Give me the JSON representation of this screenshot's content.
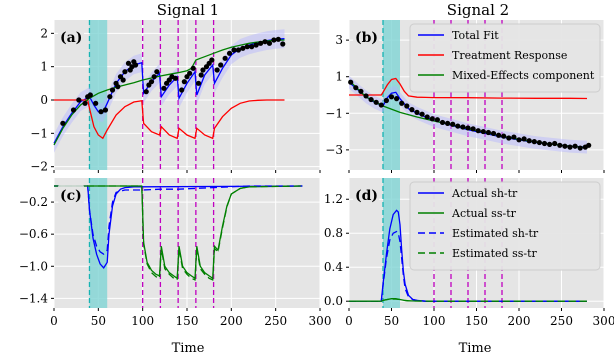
{
  "chart_data": [
    {
      "type": "line",
      "panel_label": "(a)",
      "title": "Signal 1",
      "xlim": [
        0,
        300
      ],
      "ylim": [
        -2.1,
        2.4
      ],
      "yticks": [
        2,
        1,
        0,
        -1,
        -2
      ],
      "ytick_labels": [
        "2",
        "1",
        "0",
        "−1",
        "−2"
      ],
      "xlabel": "",
      "grid": true,
      "shaded_span": [
        40,
        60
      ],
      "vlines_cyan": [
        40
      ],
      "vlines_magenta": [
        100,
        120,
        140,
        160,
        180
      ],
      "series": [
        {
          "name": "Total Fit",
          "color": "#0000ff",
          "x": [
            0,
            10,
            20,
            30,
            40,
            45,
            50,
            55,
            60,
            70,
            80,
            90,
            99,
            101,
            110,
            119,
            121,
            130,
            139,
            141,
            150,
            159,
            161,
            170,
            179,
            181,
            190,
            200,
            210,
            220,
            230,
            240,
            250,
            260
          ],
          "y": [
            -1.3,
            -0.8,
            -0.4,
            -0.05,
            0.1,
            -0.15,
            -0.35,
            -0.38,
            -0.1,
            0.5,
            0.85,
            1.05,
            1.12,
            0.2,
            0.55,
            0.8,
            0.1,
            0.45,
            0.7,
            0.05,
            0.5,
            0.85,
            0.15,
            0.75,
            1.05,
            0.5,
            0.95,
            1.35,
            1.55,
            1.65,
            1.72,
            1.78,
            1.82,
            1.84
          ]
        },
        {
          "name": "Treatment Response",
          "color": "#ff0000",
          "x": [
            0,
            38,
            40,
            45,
            50,
            55,
            60,
            70,
            80,
            90,
            99,
            101,
            110,
            119,
            121,
            130,
            139,
            141,
            150,
            159,
            161,
            170,
            179,
            181,
            190,
            200,
            210,
            220,
            230,
            240,
            250,
            260
          ],
          "y": [
            0,
            0,
            -0.25,
            -0.8,
            -1.05,
            -1.15,
            -0.9,
            -0.45,
            -0.2,
            -0.06,
            -0.02,
            -0.7,
            -0.95,
            -1.05,
            -0.8,
            -1.05,
            -1.15,
            -0.85,
            -1.05,
            -1.15,
            -0.85,
            -1.05,
            -1.15,
            -0.85,
            -0.5,
            -0.25,
            -0.1,
            -0.03,
            -0.01,
            0,
            0,
            0
          ]
        },
        {
          "name": "Mixed-Effects component",
          "color": "#008000",
          "x": [
            0,
            10,
            20,
            30,
            40,
            50,
            60,
            70,
            80,
            90,
            100,
            110,
            120,
            130,
            140,
            150,
            155,
            160,
            165,
            170,
            180,
            190,
            200,
            210,
            220,
            230,
            240,
            250,
            260
          ],
          "y": [
            -1.35,
            -0.85,
            -0.45,
            -0.15,
            0.05,
            0.2,
            0.3,
            0.38,
            0.45,
            0.52,
            0.6,
            0.66,
            0.72,
            0.77,
            0.82,
            0.88,
            0.95,
            1.2,
            1.25,
            1.3,
            1.4,
            1.5,
            1.58,
            1.64,
            1.7,
            1.74,
            1.77,
            1.79,
            1.8
          ]
        }
      ],
      "observations": {
        "x": [
          10,
          22,
          28,
          35,
          38,
          41,
          47,
          53,
          58,
          63,
          66,
          70,
          72,
          75,
          78,
          80,
          84,
          86,
          88,
          90,
          92,
          104,
          107,
          110,
          113,
          116,
          124,
          127,
          130,
          133,
          137,
          144,
          147,
          150,
          153,
          157,
          163,
          166,
          168,
          172,
          175,
          178,
          184,
          188,
          193,
          198,
          203,
          208,
          213,
          218,
          223,
          228,
          233,
          238,
          243,
          248,
          253,
          258
        ],
        "y": [
          -0.7,
          -0.3,
          0.0,
          -0.1,
          0.1,
          0.15,
          -0.1,
          -0.35,
          -0.3,
          0.1,
          0.3,
          0.5,
          0.4,
          0.7,
          0.6,
          0.85,
          1.1,
          0.9,
          1.0,
          1.15,
          1.05,
          0.25,
          0.45,
          0.55,
          0.7,
          0.85,
          0.35,
          0.5,
          0.6,
          0.7,
          0.65,
          0.3,
          0.55,
          0.7,
          0.8,
          0.95,
          0.5,
          0.75,
          0.9,
          1.0,
          1.1,
          1.2,
          0.9,
          1.05,
          1.25,
          1.4,
          1.5,
          1.5,
          1.55,
          1.6,
          1.6,
          1.65,
          1.7,
          1.75,
          1.7,
          1.8,
          1.82,
          1.68
        ]
      }
    },
    {
      "type": "line",
      "panel_label": "(b)",
      "title": "Signal 2",
      "xlim": [
        0,
        300
      ],
      "ylim": [
        -4.1,
        4.1
      ],
      "yticks": [
        3,
        1,
        -1,
        -3
      ],
      "ytick_labels": [
        "3",
        "1",
        "−1",
        "−3"
      ],
      "grid": true,
      "legend_position": "top-right",
      "shaded_span": [
        40,
        60
      ],
      "vlines_cyan": [
        40
      ],
      "vlines_magenta": [
        100,
        120,
        140,
        160,
        180
      ],
      "series": [
        {
          "name": "Total Fit",
          "color": "#0000ff",
          "x": [
            0,
            10,
            20,
            30,
            40,
            45,
            50,
            55,
            60,
            70,
            80,
            90,
            100,
            120,
            140,
            160,
            180,
            200,
            220,
            240,
            260,
            280
          ],
          "y": [
            0.7,
            0.3,
            -0.1,
            -0.4,
            -0.6,
            -0.15,
            0.1,
            0.15,
            -0.2,
            -0.75,
            -1.0,
            -1.2,
            -1.4,
            -1.65,
            -1.9,
            -2.1,
            -2.3,
            -2.45,
            -2.6,
            -2.7,
            -2.8,
            -2.85
          ]
        },
        {
          "name": "Treatment Response",
          "color": "#ff0000",
          "x": [
            0,
            38,
            40,
            45,
            50,
            55,
            60,
            65,
            70,
            80,
            90,
            100,
            140,
            180,
            220,
            260,
            280
          ],
          "y": [
            0,
            0,
            0.15,
            0.55,
            0.85,
            0.9,
            0.6,
            0.2,
            -0.05,
            -0.12,
            -0.13,
            -0.14,
            -0.15,
            -0.17,
            -0.18,
            -0.18,
            -0.19
          ]
        },
        {
          "name": "Mixed-Effects component",
          "color": "#008000",
          "x": [
            0,
            20,
            40,
            60,
            80,
            100,
            120,
            140,
            160,
            180,
            200,
            220,
            240,
            260,
            280
          ],
          "y": [
            0.8,
            -0.1,
            -0.6,
            -0.95,
            -1.2,
            -1.42,
            -1.62,
            -1.85,
            -2.05,
            -2.25,
            -2.42,
            -2.58,
            -2.7,
            -2.8,
            -2.88
          ]
        }
      ],
      "observations": {
        "x": [
          2,
          8,
          14,
          20,
          26,
          32,
          38,
          44,
          50,
          56,
          62,
          68,
          74,
          80,
          86,
          92,
          98,
          104,
          110,
          116,
          122,
          128,
          134,
          140,
          146,
          152,
          158,
          164,
          170,
          176,
          182,
          188,
          194,
          200,
          206,
          212,
          218,
          224,
          230,
          236,
          242,
          248,
          254,
          260,
          266,
          272,
          278,
          282
        ],
        "y": [
          0.7,
          0.4,
          0.2,
          -0.05,
          -0.25,
          -0.4,
          -0.55,
          -0.3,
          -0.1,
          -0.2,
          -0.45,
          -0.6,
          -0.8,
          -0.95,
          -1.05,
          -1.2,
          -1.3,
          -1.35,
          -1.5,
          -1.55,
          -1.6,
          -1.7,
          -1.75,
          -1.8,
          -1.85,
          -1.95,
          -2.0,
          -2.05,
          -2.1,
          -2.2,
          -2.25,
          -2.35,
          -2.3,
          -2.45,
          -2.4,
          -2.5,
          -2.55,
          -2.6,
          -2.65,
          -2.7,
          -2.65,
          -2.75,
          -2.8,
          -2.85,
          -2.8,
          -2.9,
          -2.85,
          -2.75
        ]
      }
    },
    {
      "type": "line",
      "panel_label": "(c)",
      "title": "",
      "xlim": [
        0,
        300
      ],
      "ylim": [
        -1.52,
        0.1
      ],
      "xticks": [
        0,
        50,
        100,
        150,
        200,
        250,
        300
      ],
      "xlabel": "Time",
      "yticks": [
        -0.2,
        -0.6,
        -1.0,
        -1.4
      ],
      "ytick_labels": [
        "−0.2",
        "−0.6",
        "−1.0",
        "−1.4"
      ],
      "grid": true,
      "shaded_span": [
        40,
        60
      ],
      "vlines_cyan": [
        40
      ],
      "vlines_magenta": [
        100,
        120,
        140,
        160,
        180
      ],
      "series": [
        {
          "name": "Actual sh-tr",
          "color": "#0000ff",
          "dash": "solid",
          "x": [
            0,
            38,
            40,
            44,
            48,
            52,
            56,
            60,
            62,
            66,
            70,
            75,
            80,
            90,
            100,
            280
          ],
          "y": [
            0,
            0,
            -0.3,
            -0.65,
            -0.85,
            -0.97,
            -1.02,
            -0.95,
            -0.6,
            -0.25,
            -0.1,
            -0.04,
            -0.02,
            -0.01,
            -0.01,
            0
          ]
        },
        {
          "name": "Actual ss-tr",
          "color": "#008000",
          "dash": "solid",
          "x": [
            0,
            99,
            101,
            105,
            110,
            115,
            119,
            121,
            125,
            130,
            135,
            139,
            141,
            145,
            150,
            155,
            159,
            161,
            165,
            170,
            175,
            179,
            181,
            185,
            190,
            195,
            200,
            210,
            220,
            280
          ],
          "y": [
            0,
            0,
            -0.7,
            -0.95,
            -1.05,
            -1.1,
            -1.12,
            -0.75,
            -1.0,
            -1.08,
            -1.12,
            -1.15,
            -0.75,
            -1.0,
            -1.08,
            -1.12,
            -1.15,
            -0.75,
            -1.0,
            -1.08,
            -1.12,
            -1.15,
            -0.75,
            -0.8,
            -0.5,
            -0.25,
            -0.1,
            -0.03,
            -0.01,
            0
          ]
        },
        {
          "name": "Estimated sh-tr",
          "color": "#0000ff",
          "dash": "dashed",
          "x": [
            0,
            38,
            40,
            44,
            48,
            52,
            56,
            60,
            62,
            66,
            70,
            80,
            100,
            120,
            140,
            160,
            180,
            200,
            220,
            280
          ],
          "y": [
            0,
            0,
            -0.3,
            -0.6,
            -0.75,
            -0.82,
            -0.85,
            -0.8,
            -0.5,
            -0.2,
            -0.08,
            -0.05,
            -0.05,
            -0.04,
            -0.04,
            -0.03,
            -0.02,
            -0.01,
            0,
            0
          ]
        },
        {
          "name": "Estimated ss-tr",
          "color": "#008000",
          "dash": "dashed",
          "x": [
            0,
            99,
            101,
            105,
            110,
            115,
            119,
            121,
            125,
            130,
            135,
            139,
            141,
            145,
            150,
            155,
            159,
            161,
            165,
            170,
            175,
            179,
            181,
            185,
            190,
            195,
            200,
            210,
            220,
            280
          ],
          "y": [
            0,
            0,
            -0.72,
            -0.97,
            -1.08,
            -1.13,
            -1.15,
            -0.78,
            -1.03,
            -1.1,
            -1.15,
            -1.17,
            -0.78,
            -1.03,
            -1.1,
            -1.15,
            -1.17,
            -0.78,
            -1.03,
            -1.1,
            -1.15,
            -1.17,
            -0.78,
            -0.82,
            -0.52,
            -0.26,
            -0.1,
            -0.03,
            -0.01,
            0
          ]
        }
      ]
    },
    {
      "type": "line",
      "panel_label": "(d)",
      "title": "",
      "xlim": [
        0,
        300
      ],
      "ylim": [
        -0.08,
        1.45
      ],
      "xticks": [
        0,
        50,
        100,
        150,
        200,
        250,
        300
      ],
      "xlabel": "Time",
      "yticks": [
        1.2,
        0.8,
        0.4,
        0.0
      ],
      "ytick_labels": [
        "1.2",
        "0.8",
        "0.4",
        "0.0"
      ],
      "grid": true,
      "legend_position": "top-right",
      "shaded_span": [
        40,
        60
      ],
      "vlines_cyan": [
        40
      ],
      "vlines_magenta": [
        100,
        120,
        140,
        160,
        180
      ],
      "series": [
        {
          "name": "Actual sh-tr",
          "color": "#0000ff",
          "dash": "solid",
          "x": [
            0,
            38,
            40,
            44,
            48,
            52,
            56,
            58,
            60,
            62,
            64,
            66,
            70,
            75,
            80,
            90,
            100,
            280
          ],
          "y": [
            0,
            0,
            0.2,
            0.55,
            0.85,
            1.02,
            1.07,
            1.05,
            0.9,
            0.6,
            0.35,
            0.2,
            0.07,
            0.02,
            0.01,
            0,
            0,
            0
          ]
        },
        {
          "name": "Actual ss-tr",
          "color": "#008000",
          "dash": "solid",
          "x": [
            0,
            38,
            40,
            45,
            50,
            55,
            60,
            65,
            70,
            80,
            100,
            280
          ],
          "y": [
            0,
            0,
            0.01,
            0.02,
            0.03,
            0.03,
            0.02,
            0.01,
            0.005,
            0.002,
            0,
            0
          ]
        },
        {
          "name": "Estimated sh-tr",
          "color": "#0000ff",
          "dash": "dashed",
          "x": [
            0,
            38,
            40,
            44,
            48,
            52,
            56,
            58,
            60,
            62,
            64,
            66,
            70,
            75,
            80,
            90,
            100,
            280
          ],
          "y": [
            0,
            0,
            0.18,
            0.5,
            0.72,
            0.8,
            0.82,
            0.8,
            0.7,
            0.5,
            0.3,
            0.15,
            0.05,
            0.02,
            0.01,
            0,
            0,
            0
          ]
        },
        {
          "name": "Estimated ss-tr",
          "color": "#008000",
          "dash": "dashed",
          "x": [
            0,
            38,
            40,
            45,
            50,
            55,
            60,
            65,
            70,
            80,
            100,
            280
          ],
          "y": [
            0,
            0,
            0.01,
            0.02,
            0.025,
            0.025,
            0.02,
            0.01,
            0.005,
            0.002,
            0,
            0
          ]
        }
      ]
    }
  ]
}
